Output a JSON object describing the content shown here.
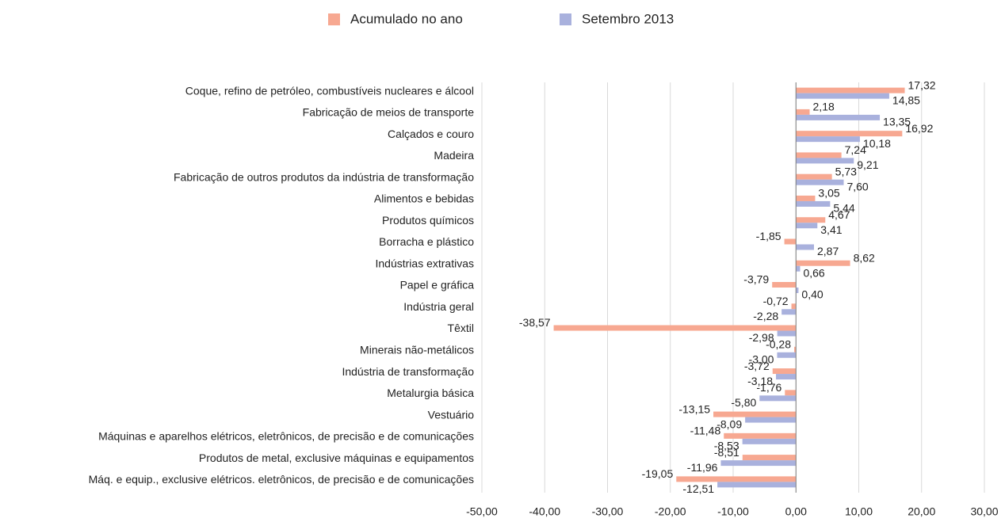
{
  "chart_data": {
    "type": "hbar",
    "categories": [
      "Coque, refino de petróleo, combustíveis nucleares e álcool",
      "Fabricação de meios de transporte",
      "Calçados e couro",
      "Madeira",
      "Fabricação de outros produtos da indústria de transformação",
      "Alimentos e bebidas",
      "Produtos químicos",
      "Borracha e plástico",
      "Indústrias extrativas",
      "Papel e gráfica",
      "Indústria geral",
      "Têxtil",
      "Minerais não-metálicos",
      "Indústria de transformação",
      "Metalurgia básica",
      "Vestuário",
      "Máquinas e aparelhos elétricos, eletrônicos, de precisão e de comunicações",
      "Produtos de metal, exclusive máquinas e equipamentos",
      "Máq. e equip., exclusive elétricos. eletrônicos, de precisão e de comunicações"
    ],
    "series": [
      {
        "name": "Acumulado no ano",
        "color": "#f7a891",
        "values": [
          17.32,
          2.18,
          16.92,
          7.24,
          5.73,
          3.05,
          4.67,
          -1.85,
          8.62,
          -3.79,
          -0.72,
          -38.57,
          -0.28,
          -3.72,
          -1.76,
          -13.15,
          -11.48,
          -8.51,
          -19.05
        ],
        "value_labels": [
          "17,32",
          "2,18",
          "16,92",
          "7,24",
          "5,73",
          "3,05",
          "4,67",
          "-1,85",
          "8,62",
          "-3,79",
          "-0,72",
          "-38,57",
          "-0,28",
          "-3,72",
          "-1,76",
          "-13,15",
          "-11,48",
          "-8,51",
          "-19,05"
        ]
      },
      {
        "name": "Setembro 2013",
        "color": "#a9b1dd",
        "values": [
          14.85,
          13.35,
          10.18,
          9.21,
          7.6,
          5.44,
          3.41,
          2.87,
          0.66,
          0.4,
          -2.28,
          -2.98,
          -3.0,
          -3.18,
          -5.8,
          -8.09,
          -8.53,
          -11.96,
          -12.51
        ],
        "value_labels": [
          "14,85",
          "13,35",
          "10,18",
          "9,21",
          "7,60",
          "5,44",
          "3,41",
          "2,87",
          "0,66",
          "0,40",
          "-2,28",
          "-2,98",
          "-3,00",
          "-3,18",
          "-5,80",
          "-8,09",
          "-8,53",
          "-11,96",
          "-12,51"
        ]
      }
    ],
    "xlim": [
      -50,
      30
    ],
    "xticks": [
      {
        "value": -50,
        "label": "-50,00"
      },
      {
        "value": -40,
        "label": "-40,00"
      },
      {
        "value": -30,
        "label": "-30,00"
      },
      {
        "value": -20,
        "label": "-20,00"
      },
      {
        "value": -10,
        "label": "-10,00"
      },
      {
        "value": 0,
        "label": "0,00"
      },
      {
        "value": 10,
        "label": "10,00"
      },
      {
        "value": 20,
        "label": "20,00"
      },
      {
        "value": 30,
        "label": "30,00"
      }
    ],
    "grid": true,
    "legend": "top"
  }
}
